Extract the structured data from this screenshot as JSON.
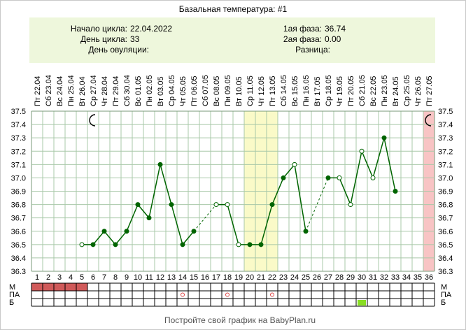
{
  "title": "Базальная температура: #1",
  "info": {
    "cycle_start_label": "Начало цикла:",
    "cycle_start_value": "22.04.2022",
    "cycle_day_label": "День цикла:",
    "cycle_day_value": "33",
    "ovulation_day_label": "День овуляции:",
    "ovulation_day_value": "",
    "phase1_label": "1ая фаза:",
    "phase1_value": "36.74",
    "phase2_label": "2ая фаза:",
    "phase2_value": "0.00",
    "difference_label": "Разница:",
    "difference_value": ""
  },
  "footer": "Постройте свой график на BabyPlan.ru",
  "bottom_rows": [
    "М",
    "ПА",
    "Б"
  ],
  "colors": {
    "info_bg": "#eef7dc",
    "grid": "#a8c8a8",
    "line": "#006400",
    "highlight": "#fafac8",
    "last_day": "#f8c4c4",
    "menses": "#d05a5a",
    "b_mark": "#88dd22",
    "pa_mark": "#dd4444"
  },
  "chart_data": {
    "type": "line",
    "days": [
      1,
      2,
      3,
      4,
      5,
      6,
      7,
      8,
      9,
      10,
      11,
      12,
      13,
      14,
      15,
      16,
      17,
      18,
      19,
      20,
      21,
      22,
      23,
      24,
      25,
      26,
      27,
      28,
      29,
      30,
      31,
      32,
      33,
      34,
      35,
      36
    ],
    "dates": [
      "Пт 22.04",
      "Сб 23.04",
      "Вс 24.04",
      "Пн 25.04",
      "Вт 26.04",
      "Ср 27.04",
      "Чт 28.04",
      "Пт 29.04",
      "Сб 30.04",
      "Вс 01.05",
      "Пн 02.05",
      "Вт 03.05",
      "Ср 04.05",
      "Чт 05.05",
      "Пт 06.05",
      "Сб 07.05",
      "Вс 08.05",
      "Пн 09.05",
      "Вт 10.05",
      "Ср 11.05",
      "Чт 12.05",
      "Пт 13.05",
      "Сб 14.05",
      "Вс 15.05",
      "Пн 16.05",
      "Вт 17.05",
      "Ср 18.05",
      "Чт 19.05",
      "Пт 20.05",
      "Сб 21.05",
      "Вс 22.05",
      "Пн 23.05",
      "Вт 24.05",
      "Ср 25.05",
      "Чт 26.05",
      "Пт 27.05"
    ],
    "y_ticks": [
      "37.5",
      "37.4",
      "37.3",
      "37.2",
      "37.1",
      "37.0",
      "36.9",
      "36.8",
      "36.7",
      "36.6",
      "36.5",
      "36.4",
      "36.3"
    ],
    "ylim": [
      36.3,
      37.5
    ],
    "points": [
      {
        "day": 5,
        "t": 36.5,
        "filled": false
      },
      {
        "day": 6,
        "t": 36.5,
        "filled": true
      },
      {
        "day": 7,
        "t": 36.6,
        "filled": true
      },
      {
        "day": 8,
        "t": 36.5,
        "filled": true
      },
      {
        "day": 9,
        "t": 36.6,
        "filled": true
      },
      {
        "day": 10,
        "t": 36.8,
        "filled": true
      },
      {
        "day": 11,
        "t": 36.7,
        "filled": true
      },
      {
        "day": 12,
        "t": 37.1,
        "filled": true
      },
      {
        "day": 13,
        "t": 36.8,
        "filled": true
      },
      {
        "day": 14,
        "t": 36.5,
        "filled": true
      },
      {
        "day": 15,
        "t": 36.6,
        "filled": true
      },
      {
        "day": 17,
        "t": 36.8,
        "filled": false
      },
      {
        "day": 18,
        "t": 36.8,
        "filled": false
      },
      {
        "day": 19,
        "t": 36.5,
        "filled": false
      },
      {
        "day": 20,
        "t": 36.5,
        "filled": true
      },
      {
        "day": 21,
        "t": 36.5,
        "filled": true
      },
      {
        "day": 22,
        "t": 36.8,
        "filled": true
      },
      {
        "day": 23,
        "t": 37.0,
        "filled": true
      },
      {
        "day": 24,
        "t": 37.1,
        "filled": false
      },
      {
        "day": 25,
        "t": 36.6,
        "filled": true
      },
      {
        "day": 27,
        "t": 37.0,
        "filled": true
      },
      {
        "day": 28,
        "t": 37.0,
        "filled": false
      },
      {
        "day": 29,
        "t": 36.8,
        "filled": false
      },
      {
        "day": 30,
        "t": 37.2,
        "filled": false
      },
      {
        "day": 31,
        "t": 37.0,
        "filled": false
      },
      {
        "day": 32,
        "t": 37.3,
        "filled": true
      },
      {
        "day": 33,
        "t": 36.9,
        "filled": true
      }
    ],
    "segments": [
      {
        "from": 5,
        "to": 14,
        "style": "solid"
      },
      {
        "from": 14,
        "to": 15,
        "style": "solid"
      },
      {
        "from": 15,
        "to": 17,
        "style": "dashed"
      },
      {
        "from": 17,
        "to": 25,
        "style": "solid"
      },
      {
        "from": 25,
        "to": 27,
        "style": "dashed"
      },
      {
        "from": 27,
        "to": 33,
        "style": "solid"
      }
    ],
    "highlight_days": [
      20,
      22
    ],
    "moon_days": [
      6,
      36
    ],
    "menses_days": [
      1,
      5
    ],
    "pa_marks": [
      14,
      18,
      22
    ],
    "b_marks": [
      30
    ]
  }
}
